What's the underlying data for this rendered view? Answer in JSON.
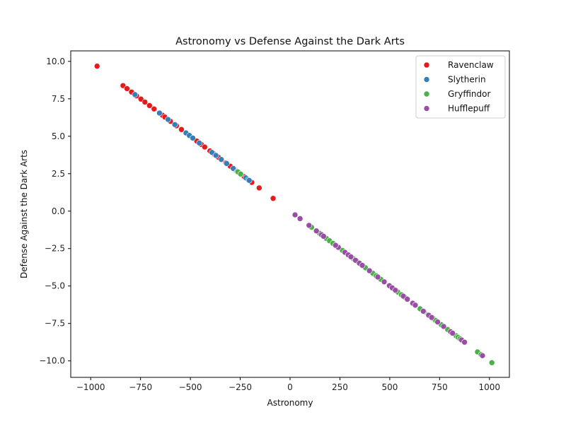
{
  "chart_data": {
    "type": "scatter",
    "title": "Astronomy vs Defense Against the Dark Arts",
    "xlabel": "Astronomy",
    "ylabel": "Defense Against the Dark Arts",
    "xlim": [
      -1100,
      1100
    ],
    "ylim": [
      -11.1,
      10.7
    ],
    "x_ticks": [
      -1000,
      -750,
      -500,
      -250,
      0,
      250,
      500,
      750,
      1000
    ],
    "y_ticks": [
      -10.0,
      -7.5,
      -5.0,
      -2.5,
      0.0,
      2.5,
      5.0,
      7.5,
      10.0
    ],
    "grid": false,
    "legend_position": "top-right",
    "series": [
      {
        "name": "Ravenclaw",
        "color": "#e41a1c",
        "x": [
          -968,
          -838,
          -818,
          -795,
          -770,
          -748,
          -728,
          -705,
          -682,
          -640,
          -628,
          -600,
          -570,
          -545,
          -508,
          -468,
          -445,
          -428,
          -402,
          -385,
          -360,
          -322,
          -300,
          -272,
          -230,
          -192,
          -155,
          -85
        ],
        "y": [
          9.68,
          8.38,
          8.18,
          7.95,
          7.7,
          7.48,
          7.28,
          7.05,
          6.82,
          6.4,
          6.28,
          6.0,
          5.7,
          5.45,
          5.08,
          4.68,
          4.45,
          4.28,
          4.02,
          3.85,
          3.6,
          3.22,
          3.0,
          2.72,
          2.3,
          1.92,
          1.55,
          0.85
        ]
      },
      {
        "name": "Slytherin",
        "color": "#377eb8",
        "x": [
          -778,
          -655,
          -578,
          -522,
          -505,
          -488,
          -392,
          -372,
          -345,
          -318,
          -282,
          -248,
          -222,
          -210,
          -205,
          -285,
          -265,
          -455,
          -612
        ],
        "y": [
          7.78,
          6.55,
          5.78,
          5.22,
          5.05,
          4.88,
          3.92,
          3.72,
          3.45,
          3.18,
          2.82,
          2.48,
          2.22,
          2.1,
          2.05,
          2.85,
          2.65,
          4.55,
          6.12
        ],
        "extra": [
          [
            368,
            -3.68
          ]
        ]
      },
      {
        "name": "Gryffindor",
        "color": "#4daf4a",
        "x": [
          108,
          148,
          182,
          198,
          215,
          238,
          262,
          318,
          335,
          352,
          378,
          415,
          432,
          455,
          518,
          540,
          558,
          575,
          652,
          672,
          692,
          718,
          730,
          758,
          790,
          808,
          832,
          842,
          852,
          865,
          940,
          958,
          1012,
          -262,
          -248
        ],
        "y": [
          -1.08,
          -1.48,
          -1.82,
          -1.98,
          -2.15,
          -2.38,
          -2.62,
          -3.18,
          -3.35,
          -3.52,
          -3.78,
          -4.15,
          -4.32,
          -4.55,
          -5.18,
          -5.4,
          -5.58,
          -5.75,
          -6.52,
          -6.72,
          -6.92,
          -7.18,
          -7.3,
          -7.58,
          -7.9,
          -8.08,
          -8.32,
          -8.42,
          -8.52,
          -8.65,
          -9.4,
          -9.58,
          -10.12,
          2.62,
          2.48
        ]
      },
      {
        "name": "Hufflepuff",
        "color": "#984ea3",
        "x": [
          25,
          50,
          95,
          132,
          158,
          168,
          242,
          275,
          292,
          305,
          328,
          348,
          362,
          398,
          440,
          472,
          498,
          512,
          528,
          568,
          588,
          615,
          628,
          668,
          695,
          710,
          740,
          770,
          805,
          815,
          860,
          875,
          965,
          228
        ],
        "y": [
          -0.25,
          -0.5,
          -0.95,
          -1.32,
          -1.58,
          -1.68,
          -2.42,
          -2.75,
          -2.92,
          -3.05,
          -3.28,
          -3.48,
          -3.62,
          -3.98,
          -4.4,
          -4.72,
          -4.98,
          -5.12,
          -5.28,
          -5.68,
          -5.88,
          -6.15,
          -6.28,
          -6.68,
          -6.95,
          -7.1,
          -7.4,
          -7.7,
          -8.05,
          -8.15,
          -8.6,
          -8.75,
          -9.65,
          -2.28
        ]
      }
    ]
  }
}
